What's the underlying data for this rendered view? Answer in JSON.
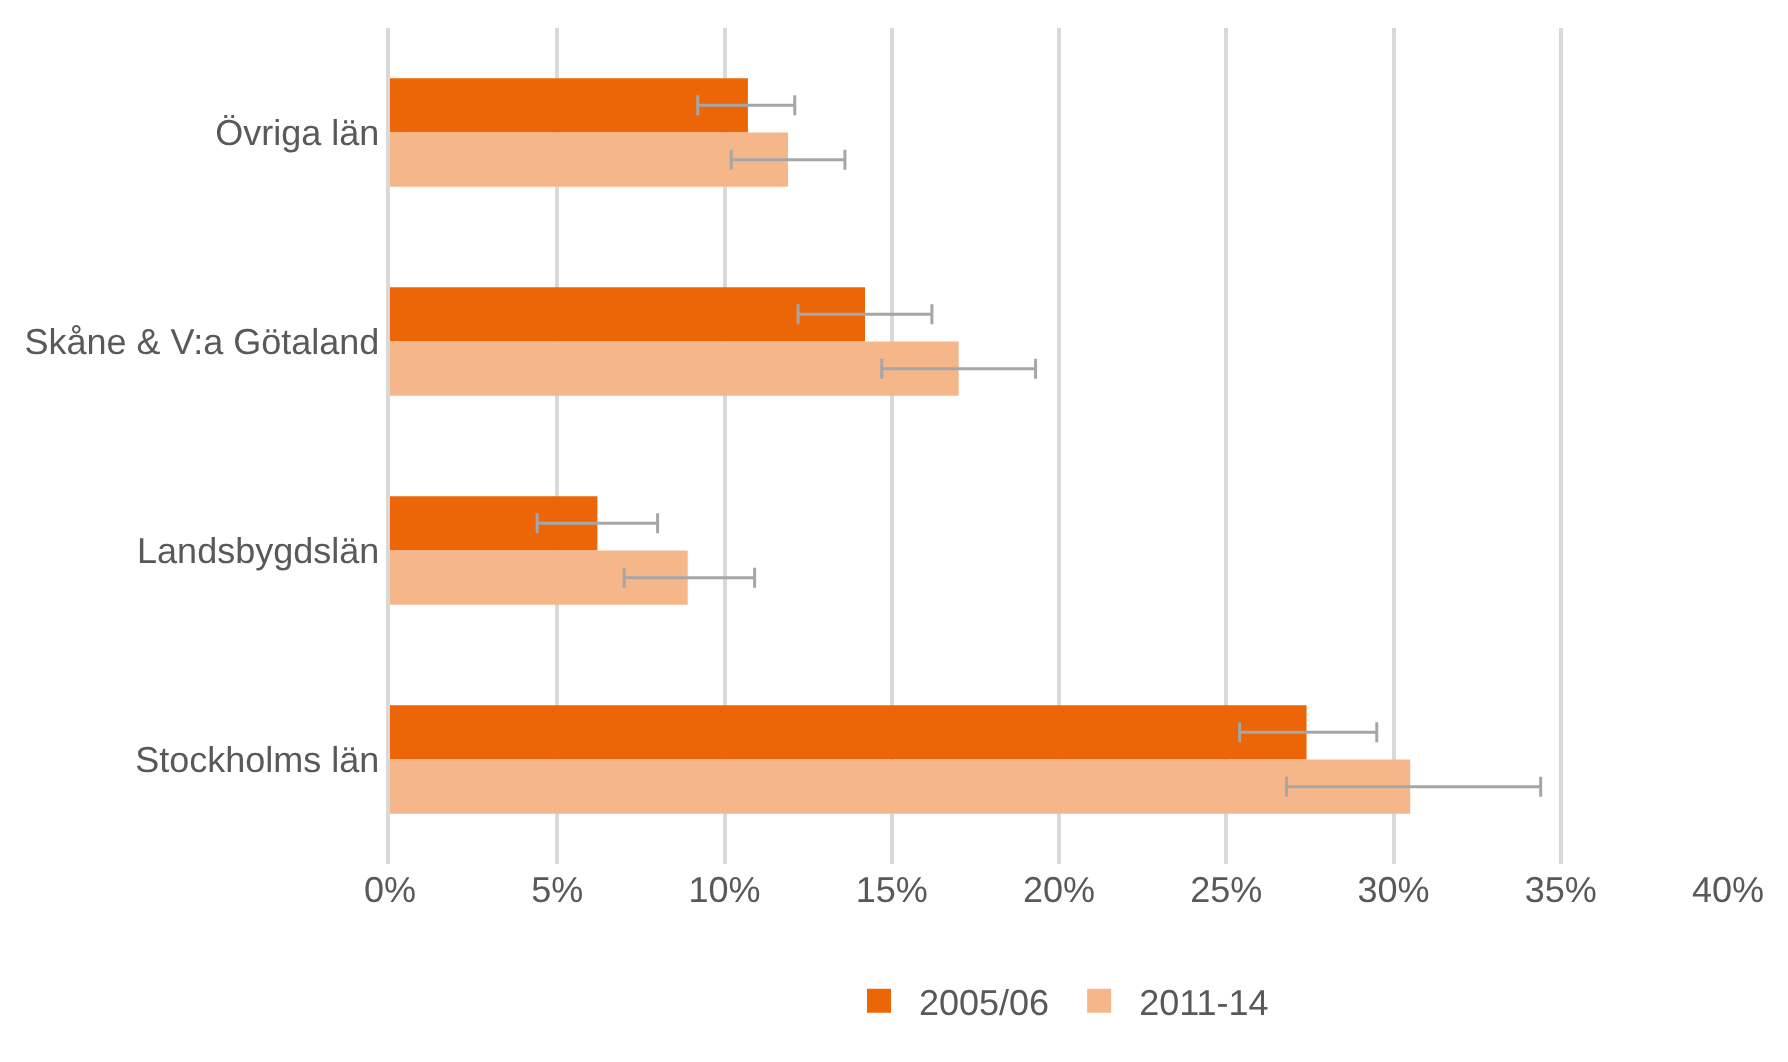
{
  "chart_data": {
    "type": "bar",
    "orientation": "horizontal",
    "categories": [
      "Övriga län",
      "Skåne & V:a Götaland",
      "Landsbygdslän",
      "Stockholms län"
    ],
    "series": [
      {
        "name": "2005/06",
        "color": "#ec6608",
        "values": [
          10.7,
          14.2,
          6.2,
          27.4
        ],
        "errors": [
          [
            9.2,
            12.1
          ],
          [
            12.2,
            16.2
          ],
          [
            4.4,
            8.0
          ],
          [
            25.4,
            29.5
          ]
        ]
      },
      {
        "name": "2011-14",
        "color": "#f5b78a",
        "values": [
          11.9,
          17.0,
          8.9,
          30.5
        ],
        "errors": [
          [
            10.2,
            13.6
          ],
          [
            14.7,
            19.3
          ],
          [
            7.0,
            10.9
          ],
          [
            26.8,
            34.4
          ]
        ]
      }
    ],
    "xlim": [
      0,
      40
    ],
    "xticks": [
      {
        "value": 0,
        "label": "0%"
      },
      {
        "value": 5,
        "label": "5%"
      },
      {
        "value": 10,
        "label": "10%"
      },
      {
        "value": 15,
        "label": "15%"
      },
      {
        "value": 20,
        "label": "20%"
      },
      {
        "value": 25,
        "label": "25%"
      },
      {
        "value": 30,
        "label": "30%"
      },
      {
        "value": 35,
        "label": "35%"
      },
      {
        "value": 40,
        "label": "40%"
      }
    ],
    "grid": "x",
    "legend": "bottom"
  }
}
